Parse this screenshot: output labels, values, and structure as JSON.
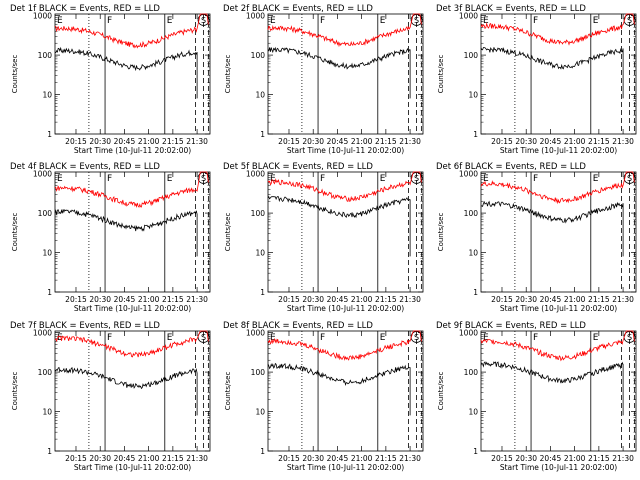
{
  "page": {
    "background": "#ffffff"
  },
  "colors": {
    "events": "#000000",
    "lld": "#ff0000",
    "axis": "#000000"
  },
  "shared": {
    "ylabel": "Counts/sec",
    "xlabel": "Start Time (10-Jul-11 20:02:00)",
    "y_ticks": [
      "1",
      "10",
      "100",
      "1000"
    ],
    "x_ticks": [
      "20:15",
      "20:30",
      "20:45",
      "21:00",
      "21:15",
      "21:30"
    ],
    "markers": {
      "E": "E",
      "F": "F",
      "S": "S"
    }
  },
  "chart_data": [
    {
      "type": "line",
      "title": "Det 1f BLACK = Events, RED = LLD",
      "x_range": [
        "20:02",
        "21:38"
      ],
      "ylim": [
        1,
        1100
      ],
      "yscale": "log",
      "series": [
        {
          "color": "red",
          "base": 330,
          "values": "approx"
        },
        {
          "color": "black",
          "base": 90,
          "values": "approx"
        }
      ]
    },
    {
      "type": "line",
      "title": "Det 2f BLACK = Events, RED = LLD",
      "x_range": [
        "20:02",
        "21:38"
      ],
      "ylim": [
        1,
        1100
      ],
      "yscale": "log",
      "series": [
        {
          "color": "red",
          "base": 340,
          "values": "approx"
        },
        {
          "color": "black",
          "base": 95,
          "values": "approx"
        }
      ]
    },
    {
      "type": "line",
      "title": "Det 3f BLACK = Events, RED = LLD",
      "x_range": [
        "20:02",
        "21:38"
      ],
      "ylim": [
        1,
        1100
      ],
      "yscale": "log",
      "series": [
        {
          "color": "red",
          "base": 380,
          "values": "approx"
        },
        {
          "color": "black",
          "base": 95,
          "values": "approx"
        }
      ]
    },
    {
      "type": "line",
      "title": "Det 4f BLACK = Events, RED = LLD",
      "x_range": [
        "20:02",
        "21:38"
      ],
      "ylim": [
        1,
        1100
      ],
      "yscale": "log",
      "series": [
        {
          "color": "red",
          "base": 300,
          "values": "approx"
        },
        {
          "color": "black",
          "base": 75,
          "values": "approx"
        }
      ]
    },
    {
      "type": "line",
      "title": "Det 5f BLACK = Events, RED = LLD",
      "x_range": [
        "20:02",
        "21:38"
      ],
      "ylim": [
        1,
        1100
      ],
      "yscale": "log",
      "series": [
        {
          "color": "red",
          "base": 420,
          "values": "approx"
        },
        {
          "color": "black",
          "base": 160,
          "values": "approx"
        }
      ]
    },
    {
      "type": "line",
      "title": "Det 6f BLACK = Events, RED = LLD",
      "x_range": [
        "20:02",
        "21:38"
      ],
      "ylim": [
        1,
        1100
      ],
      "yscale": "log",
      "series": [
        {
          "color": "red",
          "base": 380,
          "values": "approx"
        },
        {
          "color": "black",
          "base": 120,
          "values": "approx"
        }
      ]
    },
    {
      "type": "line",
      "title": "Det 7f BLACK = Events, RED = LLD",
      "x_range": [
        "20:02",
        "21:38"
      ],
      "ylim": [
        1,
        1100
      ],
      "yscale": "log",
      "series": [
        {
          "color": "red",
          "base": 500,
          "values": "approx"
        },
        {
          "color": "black",
          "base": 80,
          "values": "approx"
        }
      ]
    },
    {
      "type": "line",
      "title": "Det 8f BLACK = Events, RED = LLD",
      "x_range": [
        "20:02",
        "21:38"
      ],
      "ylim": [
        1,
        1100
      ],
      "yscale": "log",
      "series": [
        {
          "color": "red",
          "base": 420,
          "values": "approx"
        },
        {
          "color": "black",
          "base": 100,
          "values": "approx"
        }
      ]
    },
    {
      "type": "line",
      "title": "Det 9f BLACK = Events, RED = LLD",
      "x_range": [
        "20:02",
        "21:38"
      ],
      "ylim": [
        1,
        1100
      ],
      "yscale": "log",
      "series": [
        {
          "color": "red",
          "base": 420,
          "values": "approx"
        },
        {
          "color": "black",
          "base": 110,
          "values": "approx"
        }
      ]
    }
  ]
}
